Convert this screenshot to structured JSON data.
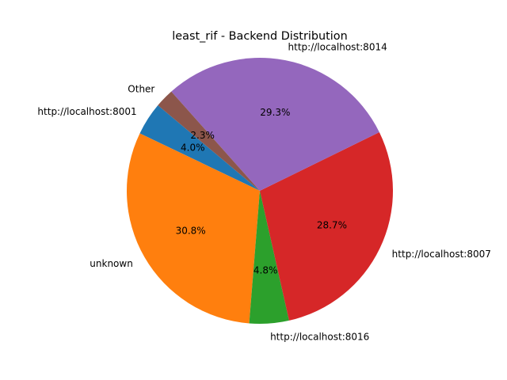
{
  "chart_data": {
    "type": "pie",
    "title": "least_rif - Backend Distribution",
    "start_angle_deg": 140,
    "direction": "counterclockwise",
    "slices": [
      {
        "label": "http://localhost:8001",
        "value": 4.0,
        "pct_label": "4.0%",
        "color": "#1f77b4"
      },
      {
        "label": "unknown",
        "value": 30.8,
        "pct_label": "30.8%",
        "color": "#ff7f0e"
      },
      {
        "label": "http://localhost:8016",
        "value": 4.8,
        "pct_label": "4.8%",
        "color": "#2ca02c"
      },
      {
        "label": "http://localhost:8007",
        "value": 28.7,
        "pct_label": "28.7%",
        "color": "#d62728"
      },
      {
        "label": "http://localhost:8014",
        "value": 29.3,
        "pct_label": "29.3%",
        "color": "#9467bd"
      },
      {
        "label": "Other",
        "value": 2.3,
        "pct_label": "2.3%",
        "color": "#8c564b"
      }
    ]
  }
}
